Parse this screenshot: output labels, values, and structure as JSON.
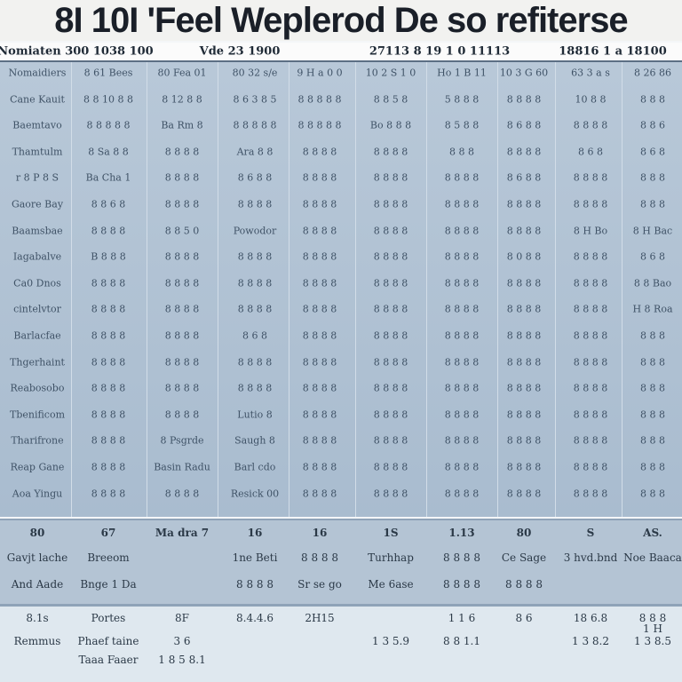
{
  "header": {
    "title": "8I 10I 'Feel Weplerod  De so refiterse",
    "cells": [
      "Nomiaten 300 1038 100",
      "Vde 23 1900",
      "27113 8 19 1 0 11113",
      "18816 1 a 18100"
    ]
  },
  "table": {
    "rows": [
      [
        "Nomaidiers",
        "8 61 Bees",
        "80 Fea 01",
        "80 32 s/e",
        "9 H a 0 0",
        "10 2 S 1 0",
        "Ho 1 B 11",
        "10 3 G 60",
        "63 3 a s",
        "8 26 86"
      ],
      [
        "Cane Kauit",
        "8 8 10 8 8",
        "8 12 8 8",
        "8 6 3 8 5",
        "8 8 8 8 8",
        "8 8 5 8",
        "5 8 8 8",
        "8 8 8 8",
        "10 8 8",
        "8 8 8"
      ],
      [
        "Baemtavo",
        "8 8 8 8 8",
        "Ba Rm 8",
        "8 8 8 8 8",
        "8 8 8 8 8",
        "Bo 8 8 8",
        "8 5 8 8",
        "8 6 8 8",
        "8 8 8 8",
        "8 8 6"
      ],
      [
        "Thamtulm",
        "8 Sa 8 8",
        "8 8 8 8",
        "Ara 8 8",
        "8 8 8 8",
        "8 8 8 8",
        "8 8 8",
        "8 8 8 8",
        "8 6 8",
        "8 6 8"
      ],
      [
        "r 8 P 8 S",
        "Ba Cha 1",
        "8 8 8 8",
        "8 6 8 8",
        "8 8 8 8",
        "8 8 8 8",
        "8 8 8 8",
        "8 6 8 8",
        "8 8 8 8",
        "8 8 8"
      ],
      [
        "Gaore Bay",
        "8 8 6 8",
        "8 8 8 8",
        "8 8 8 8",
        "8 8 8 8",
        "8 8 8 8",
        "8 8 8 8",
        "8 8 8 8",
        "8 8 8 8",
        "8 8 8"
      ],
      [
        "Baamsbae",
        "8 8 8 8",
        "8 8 5 0",
        "Powodor",
        "8 8 8 8",
        "8 8 8 8",
        "8 8 8 8",
        "8 8 8 8",
        "8 H Bo",
        "8 H Bac"
      ],
      [
        "Iagabalve",
        "B 8 8 8",
        "8 8 8 8",
        "8 8 8 8",
        "8 8 8 8",
        "8 8 8 8",
        "8 8 8 8",
        "8 0 8 8",
        "8 8 8 8",
        "8 6 8"
      ],
      [
        "Ca0 Dnos",
        "8 8 8 8",
        "8 8 8 8",
        "8 8 8 8",
        "8 8 8 8",
        "8 8 8 8",
        "8 8 8 8",
        "8 8 8 8",
        "8 8 8 8",
        "8 8 Bao"
      ],
      [
        "cintelvtor",
        "8 8 8 8",
        "8 8 8 8",
        "8 8 8 8",
        "8 8 8 8",
        "8 8 8 8",
        "8 8 8 8",
        "8 8 8 8",
        "8 8 8 8",
        "H 8 Roa"
      ],
      [
        "Barlacfae",
        "8 8 8 8",
        "8 8 8 8",
        "8 6 8",
        "8 8 8 8",
        "8 8 8 8",
        "8 8 8 8",
        "8 8 8 8",
        "8 8 8 8",
        "8 8 8"
      ],
      [
        "Thgerhaint",
        "8 8 8 8",
        "8 8 8 8",
        "8 8 8 8",
        "8 8 8 8",
        "8 8 8 8",
        "8 8 8 8",
        "8 8 8 8",
        "8 8 8 8",
        "8 8 8"
      ],
      [
        "Reabosobo",
        "8 8 8 8",
        "8 8 8 8",
        "8 8 8 8",
        "8 8 8 8",
        "8 8 8 8",
        "8 8 8 8",
        "8 8 8 8",
        "8 8 8 8",
        "8 8 8"
      ],
      [
        "Tbenificom",
        "8 8 8 8",
        "8 8 8 8",
        "Lutio 8",
        "8 8 8 8",
        "8 8 8 8",
        "8 8 8 8",
        "8 8 8 8",
        "8 8 8 8",
        "8 8 8"
      ],
      [
        "Tharifrone",
        "8 8 8 8",
        "8 Psgrde",
        "Saugh 8",
        "8 8 8 8",
        "8 8 8 8",
        "8 8 8 8",
        "8 8 8 8",
        "8 8 8 8",
        "8 8 8"
      ],
      [
        "Reap Gane",
        "8 8 8 8",
        "Basin Radu",
        "Barl cdo",
        "8 8 8 8",
        "8 8 8 8",
        "8 8 8 8",
        "8 8 8 8",
        "8 8 8 8",
        "8 8 8"
      ],
      [
        "Aoa Yingu",
        "8 8 8 8",
        "8 8 8 8",
        "Resick 00",
        "8 8 8 8",
        "8 8 8 8",
        "8 8 8 8",
        "8 8 8 8",
        "8 8 8 8",
        "8 8 8"
      ]
    ]
  },
  "summary": {
    "rows": [
      [
        "80",
        "67",
        "Ma dra 7",
        "16",
        "16",
        "1S",
        "1.13",
        "80",
        "S",
        "AS."
      ],
      [
        "Gavjt lache",
        "Breeom",
        null,
        "1ne Beti",
        "8 8 8 8",
        "Turhhap",
        "8 8 8 8",
        "Ce Sage",
        "3 hvd.bnd",
        "Noe Baaca"
      ],
      [
        "And Aade",
        "Bnge 1 Da",
        null,
        "8 8 8 8",
        "Sr se go",
        "Me 6ase",
        "8 8 8 8",
        "8 8 8 8",
        null,
        null
      ]
    ]
  },
  "totals": {
    "rows": [
      [
        "8.1s",
        "Portes",
        "8F",
        "8.4.4.6",
        "2H15",
        null,
        "1 1 6",
        "8 6",
        "18 6.8",
        "8 8 8"
      ],
      [
        null,
        null,
        null,
        null,
        null,
        null,
        null,
        null,
        null,
        "1 H"
      ],
      [
        "Remmus",
        "Phaef taine",
        "3 6",
        null,
        null,
        "1 3 5.9",
        "8 8 1.1",
        null,
        "1 3 8.2",
        "1 3 8.5"
      ],
      [
        null,
        "Taaa Faaer",
        "1 8 5 8.1",
        null,
        null,
        null,
        null,
        null,
        null,
        null
      ]
    ]
  }
}
